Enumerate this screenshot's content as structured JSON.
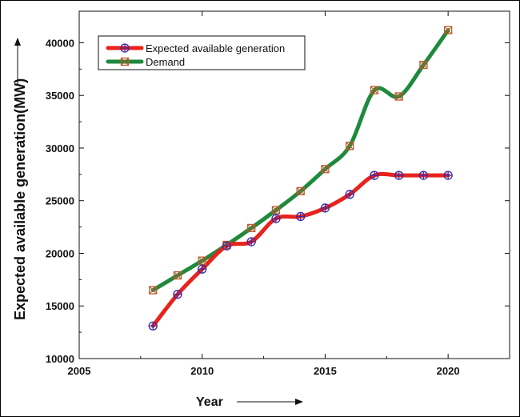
{
  "chart_data": {
    "type": "line",
    "xlabel": "Year",
    "ylabel": "Expected available generation(MW)",
    "xlim": [
      2005,
      2022.5
    ],
    "ylim": [
      10000,
      43000
    ],
    "x_ticks": [
      2005,
      2010,
      2015,
      2020
    ],
    "y_ticks": [
      10000,
      15000,
      20000,
      25000,
      30000,
      35000,
      40000
    ],
    "grid": false,
    "legend_position": "top-left",
    "series": [
      {
        "name": "Expected available generation",
        "color": "#e8221c",
        "marker": "circle-cross",
        "marker_color": "#3a2aa8",
        "x": [
          2008,
          2009,
          2010,
          2011,
          2012,
          2013,
          2014,
          2015,
          2016,
          2017,
          2018,
          2019,
          2020
        ],
        "values": [
          13100,
          16100,
          18500,
          20700,
          21100,
          23300,
          23500,
          24300,
          25600,
          27400,
          27400,
          27400,
          27400
        ]
      },
      {
        "name": "Demand",
        "color": "#1f8a3c",
        "marker": "square-x",
        "marker_color": "#c0562a",
        "x": [
          2008,
          2009,
          2010,
          2011,
          2012,
          2013,
          2014,
          2015,
          2016,
          2017,
          2018,
          2019,
          2020
        ],
        "values": [
          16500,
          17900,
          19300,
          20800,
          22400,
          24100,
          25900,
          28000,
          30200,
          35500,
          34900,
          37900,
          41200
        ]
      }
    ]
  }
}
